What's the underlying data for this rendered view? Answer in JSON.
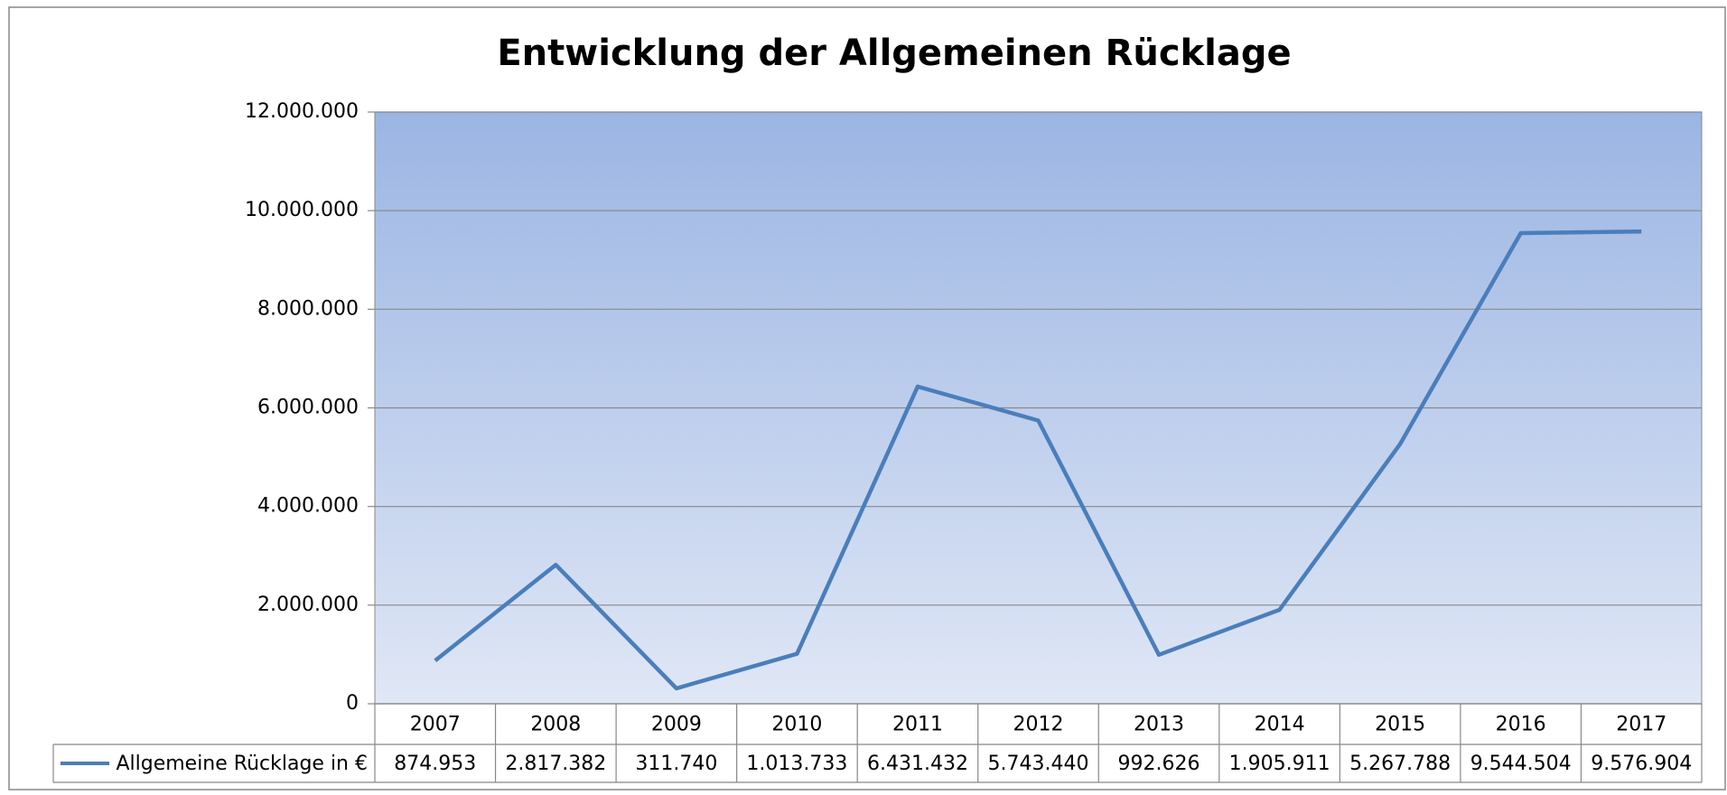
{
  "chart_data": {
    "type": "line",
    "title": "Entwicklung der Allgemeinen Rücklage",
    "categories": [
      "2007",
      "2008",
      "2009",
      "2010",
      "2011",
      "2012",
      "2013",
      "2014",
      "2015",
      "2016",
      "2017"
    ],
    "series": [
      {
        "name": "Allgemeine Rücklage in €",
        "color": "#4a7ebb",
        "values": [
          874953,
          2817382,
          311740,
          1013733,
          6431432,
          5743440,
          992626,
          1905911,
          5267788,
          9544504,
          9576904
        ],
        "value_labels": [
          "874.953",
          "2.817.382",
          "311.740",
          "1.013.733",
          "6.431.432",
          "5.743.440",
          "992.626",
          "1.905.911",
          "5.267.788",
          "9.544.504",
          "9.576.904"
        ]
      }
    ],
    "ylim": [
      0,
      12000000
    ],
    "yticks": [
      0,
      {
        "value": 2000000,
        "label": "2.000.000"
      },
      {
        "value": 4000000,
        "label": "4.000.000"
      },
      {
        "value": 6000000,
        "label": "6.000.000"
      },
      {
        "value": 8000000,
        "label": "8.000.000"
      },
      {
        "value": 10000000,
        "label": "10.000.000"
      },
      {
        "value": 12000000,
        "label": "12.000.000"
      }
    ],
    "grid": true
  }
}
